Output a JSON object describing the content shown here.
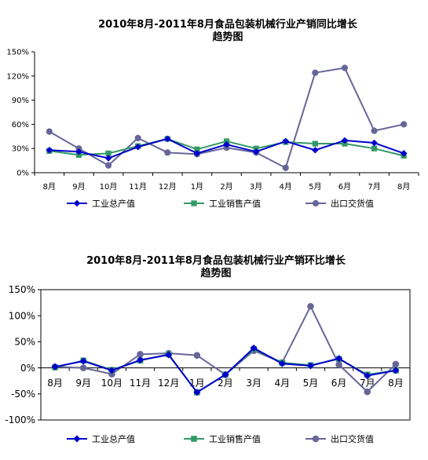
{
  "chart_data": [
    {
      "type": "line",
      "title_line1": "2010年8月-2011年8月食品包装机械行业产销同比增长",
      "title_line2": "趋势图",
      "categories": [
        "8月",
        "9月",
        "10月",
        "11月",
        "12月",
        "1月",
        "2月",
        "3月",
        "4月",
        "5月",
        "6月",
        "7月",
        "8月"
      ],
      "y_ticks": [
        "0%",
        "30%",
        "60%",
        "90%",
        "120%",
        "150%"
      ],
      "ylim": [
        0,
        150
      ],
      "ylabel": "",
      "xlabel": "",
      "grid": false,
      "legend_position": "bottom",
      "series": [
        {
          "name": "工业总产值",
          "color": "#0000cc",
          "marker": "diamond",
          "values": [
            28,
            26,
            18,
            32,
            42,
            24,
            35,
            26,
            39,
            28,
            40,
            37,
            24
          ]
        },
        {
          "name": "工业销售产值",
          "color": "#339966",
          "marker": "square",
          "values": [
            27,
            22,
            24,
            33,
            42,
            29,
            39,
            30,
            38,
            36,
            36,
            30,
            21
          ]
        },
        {
          "name": "出口交货值",
          "color": "#666699",
          "marker": "circle",
          "values": [
            51,
            30,
            9,
            43,
            25,
            23,
            31,
            25,
            6,
            124,
            130,
            52,
            60
          ]
        }
      ]
    },
    {
      "type": "line",
      "title_line1": "2010年8月-2011年8月食品包装机械行业产销环比增长",
      "title_line2": "趋势图",
      "categories": [
        "8月",
        "9月",
        "10月",
        "11月",
        "12月",
        "1月",
        "2月",
        "3月",
        "4月",
        "5月",
        "6月",
        "7月",
        "8月"
      ],
      "y_ticks": [
        "-100%",
        "-50%",
        "0%",
        "50%",
        "100%",
        "150%"
      ],
      "ylim": [
        -100,
        150
      ],
      "ylabel": "",
      "xlabel": "",
      "grid": false,
      "legend_position": "bottom",
      "series": [
        {
          "name": "工业总产值",
          "color": "#0000cc",
          "marker": "diamond",
          "values": [
            2,
            13,
            -5,
            15,
            25,
            -47,
            -13,
            38,
            8,
            4,
            18,
            -15,
            -5
          ]
        },
        {
          "name": "工业销售产值",
          "color": "#339966",
          "marker": "square",
          "values": [
            1,
            14,
            -4,
            14,
            26,
            -47,
            -13,
            36,
            10,
            5,
            17,
            -13,
            -5
          ]
        },
        {
          "name": "出口交货值",
          "color": "#666699",
          "marker": "circle",
          "values": [
            2,
            0,
            -12,
            26,
            28,
            24,
            -13,
            33,
            10,
            118,
            6,
            -46,
            7
          ]
        }
      ]
    }
  ]
}
